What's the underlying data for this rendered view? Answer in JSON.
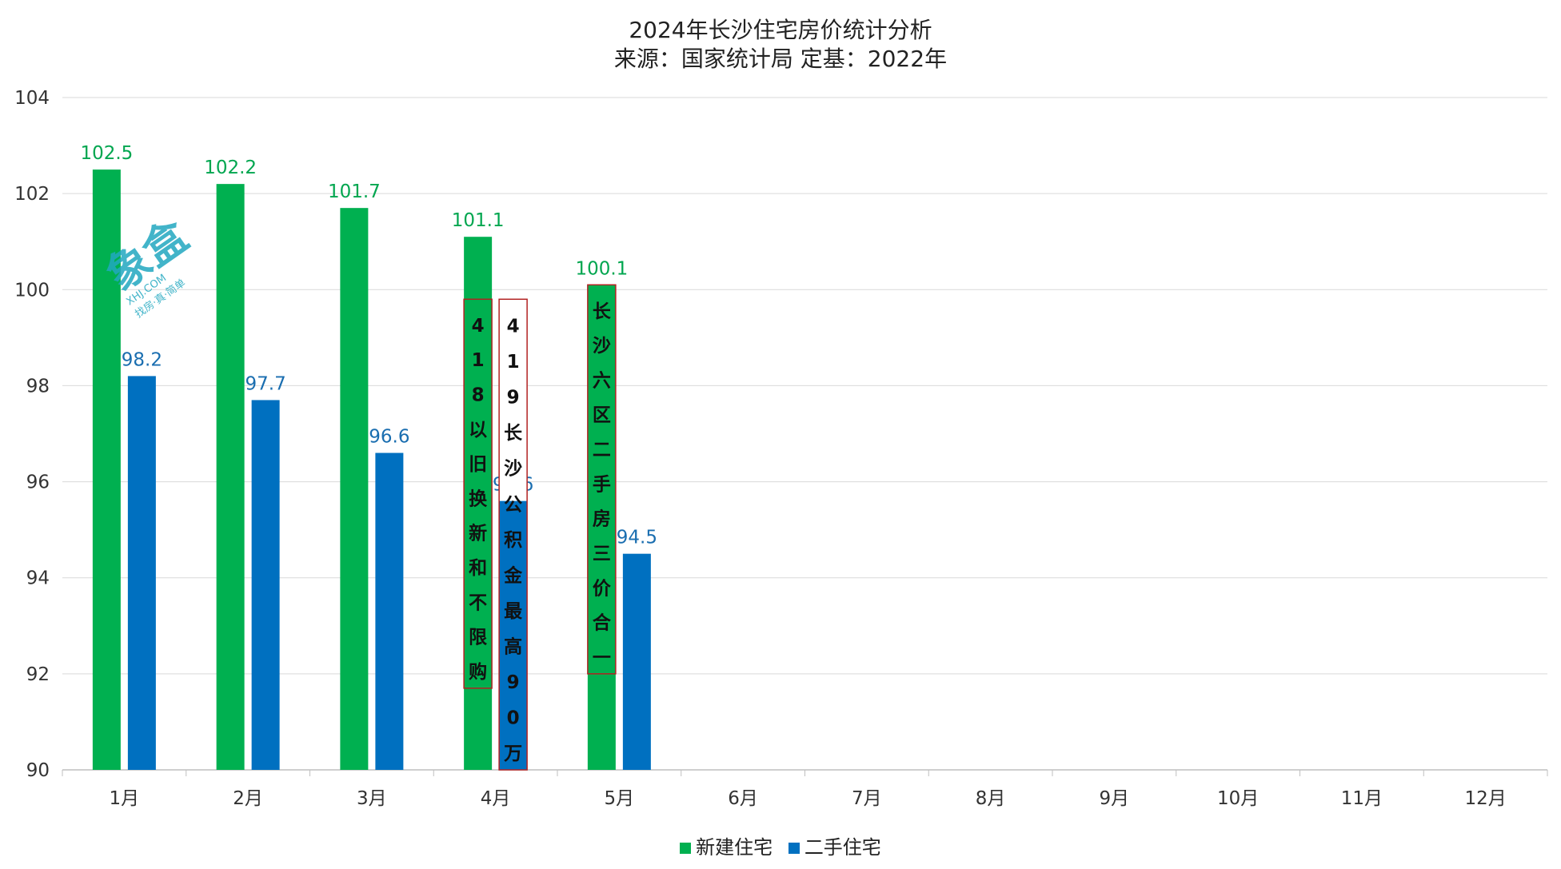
{
  "chart_data": {
    "type": "bar",
    "title": "2024年长沙住宅房价统计分析",
    "subtitle": "来源：国家统计局 定基：2022年",
    "categories": [
      "1月",
      "2月",
      "3月",
      "4月",
      "5月",
      "6月",
      "7月",
      "8月",
      "9月",
      "10月",
      "11月",
      "12月"
    ],
    "series": [
      {
        "name": "新建住宅",
        "color": "#00b050",
        "label_color": "#00a64f",
        "values": [
          102.5,
          102.2,
          101.7,
          101.1,
          100.1,
          null,
          null,
          null,
          null,
          null,
          null,
          null
        ]
      },
      {
        "name": "二手住宅",
        "color": "#0070c0",
        "label_color": "#1a6eb0",
        "values": [
          98.2,
          97.7,
          96.6,
          95.6,
          94.5,
          null,
          null,
          null,
          null,
          null,
          null,
          null
        ]
      }
    ],
    "ylim": [
      90,
      104
    ],
    "yticks": [
      90,
      92,
      94,
      96,
      98,
      100,
      102,
      104
    ],
    "grid": true,
    "legend_position": "bottom",
    "annotations": [
      {
        "text": "418以旧换新和不限购",
        "category": "4月",
        "series": 0,
        "top_value": 99.8,
        "bottom_value": 91.7,
        "fill": "none"
      },
      {
        "text": "419长沙公积金最高90万",
        "category": "4月",
        "series": 1,
        "top_value": 99.8,
        "bottom_value": 90.0,
        "fill": "white_top"
      },
      {
        "text": "长沙六区二手房三价合一",
        "category": "5月",
        "series": 0,
        "top_value": 100.1,
        "bottom_value": 92.0,
        "fill": "none"
      }
    ],
    "annotation_border_color": "#b22222",
    "watermark": {
      "big": "象盒",
      "small1": "XHJ.COM",
      "small2": "找房·真·简单"
    }
  }
}
